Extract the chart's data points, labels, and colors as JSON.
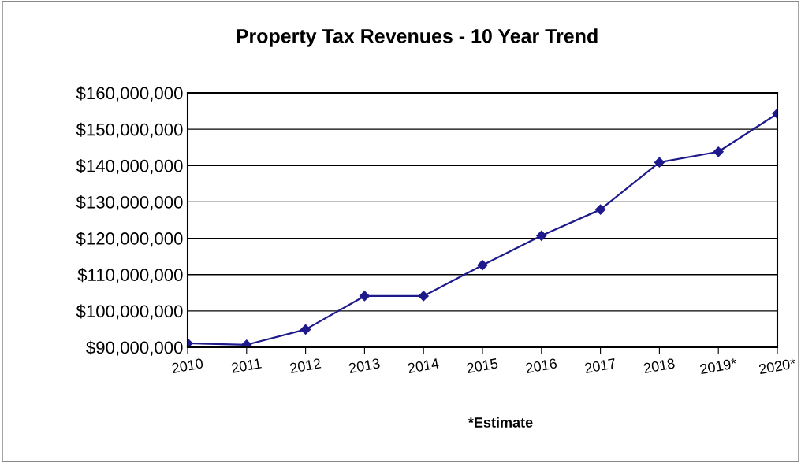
{
  "chart_data": {
    "type": "line",
    "title": "Property Tax Revenues - 10 Year Trend",
    "categories": [
      "2010",
      "2011",
      "2012",
      "2013",
      "2014",
      "2015",
      "2016",
      "2017",
      "2018",
      "2019*",
      "2020*"
    ],
    "series": [
      {
        "color": "#1f1a8c",
        "values": [
          91100000,
          90700000,
          94900000,
          104100000,
          104100000,
          112600000,
          120700000,
          127900000,
          140900000,
          143800000,
          154300000
        ]
      }
    ],
    "ylim": [
      90000000,
      160000000
    ],
    "yticks": [
      {
        "value": 90000000,
        "label": "$90,000,000"
      },
      {
        "value": 100000000,
        "label": "$100,000,000"
      },
      {
        "value": 110000000,
        "label": "$110,000,000"
      },
      {
        "value": 120000000,
        "label": "$120,000,000"
      },
      {
        "value": 130000000,
        "label": "$130,000,000"
      },
      {
        "value": 140000000,
        "label": "$140,000,000"
      },
      {
        "value": 150000000,
        "label": "$150,000,000"
      },
      {
        "value": 160000000,
        "label": "$160,000,000"
      }
    ],
    "grid": "y",
    "marker": "diamond",
    "line_style": "solid",
    "annotations": [
      "*Estimate"
    ]
  }
}
